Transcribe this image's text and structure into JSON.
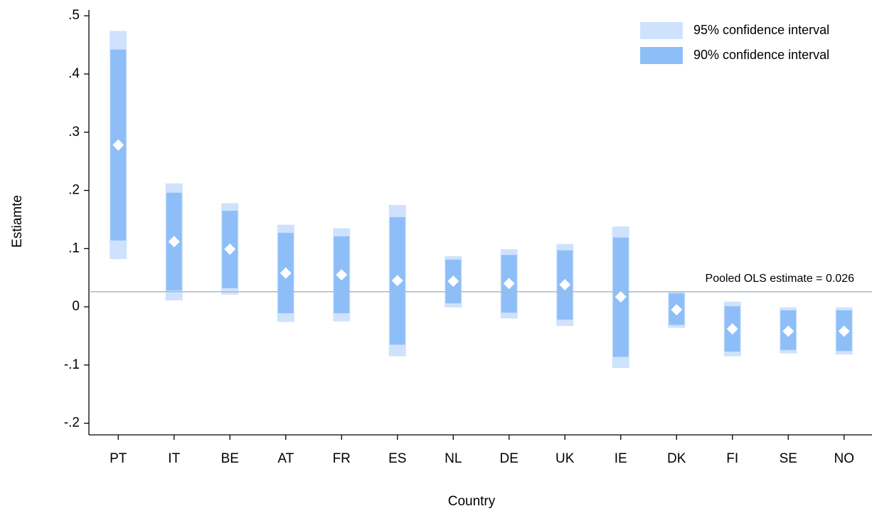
{
  "chart_data": {
    "type": "interval",
    "x_label": "Country",
    "y_label": "Estiamte",
    "categories": [
      "PT",
      "IT",
      "BE",
      "AT",
      "FR",
      "ES",
      "NL",
      "DE",
      "UK",
      "IE",
      "DK",
      "FI",
      "SE",
      "NO"
    ],
    "series": [
      {
        "name": "95% confidence interval",
        "color": "#cfe2fd",
        "lower": [
          0.082,
          0.011,
          0.021,
          -0.026,
          -0.025,
          -0.085,
          -0.001,
          -0.02,
          -0.033,
          -0.105,
          -0.036,
          -0.085,
          -0.08,
          -0.082
        ],
        "upper": [
          0.474,
          0.212,
          0.178,
          0.141,
          0.135,
          0.175,
          0.087,
          0.099,
          0.108,
          0.138,
          0.026,
          0.009,
          -0.001,
          -0.001
        ]
      },
      {
        "name": "90% confidence interval",
        "color": "#8ebef8",
        "lower": [
          0.114,
          0.028,
          0.032,
          -0.011,
          -0.011,
          -0.065,
          0.006,
          -0.01,
          -0.022,
          -0.086,
          -0.031,
          -0.077,
          -0.074,
          -0.076
        ],
        "upper": [
          0.442,
          0.196,
          0.165,
          0.127,
          0.121,
          0.154,
          0.081,
          0.089,
          0.097,
          0.119,
          0.023,
          0.001,
          -0.006,
          -0.006
        ]
      }
    ],
    "estimates": {
      "color": "#ffffff",
      "values": [
        0.278,
        0.112,
        0.099,
        0.058,
        0.055,
        0.045,
        0.044,
        0.04,
        0.038,
        0.017,
        -0.005,
        -0.038,
        -0.042,
        -0.042
      ]
    },
    "reference": {
      "value": 0.026,
      "label": "Pooled OLS estimate = 0.026",
      "color": "#a9b9c9",
      "label_color": "#4a6079"
    },
    "ylim": [
      -0.22,
      0.51
    ],
    "yticks": [
      {
        "value": -0.2,
        "label": "-.2"
      },
      {
        "value": -0.1,
        "label": "-.1"
      },
      0,
      {
        "value": 0.1,
        "label": ".1"
      },
      {
        "value": 0.2,
        "label": ".2"
      },
      {
        "value": 0.3,
        "label": ".3"
      },
      {
        "value": 0.4,
        "label": ".4"
      },
      {
        "value": 0.5,
        "label": ".5"
      }
    ],
    "legend": "top-right",
    "grid": false
  }
}
